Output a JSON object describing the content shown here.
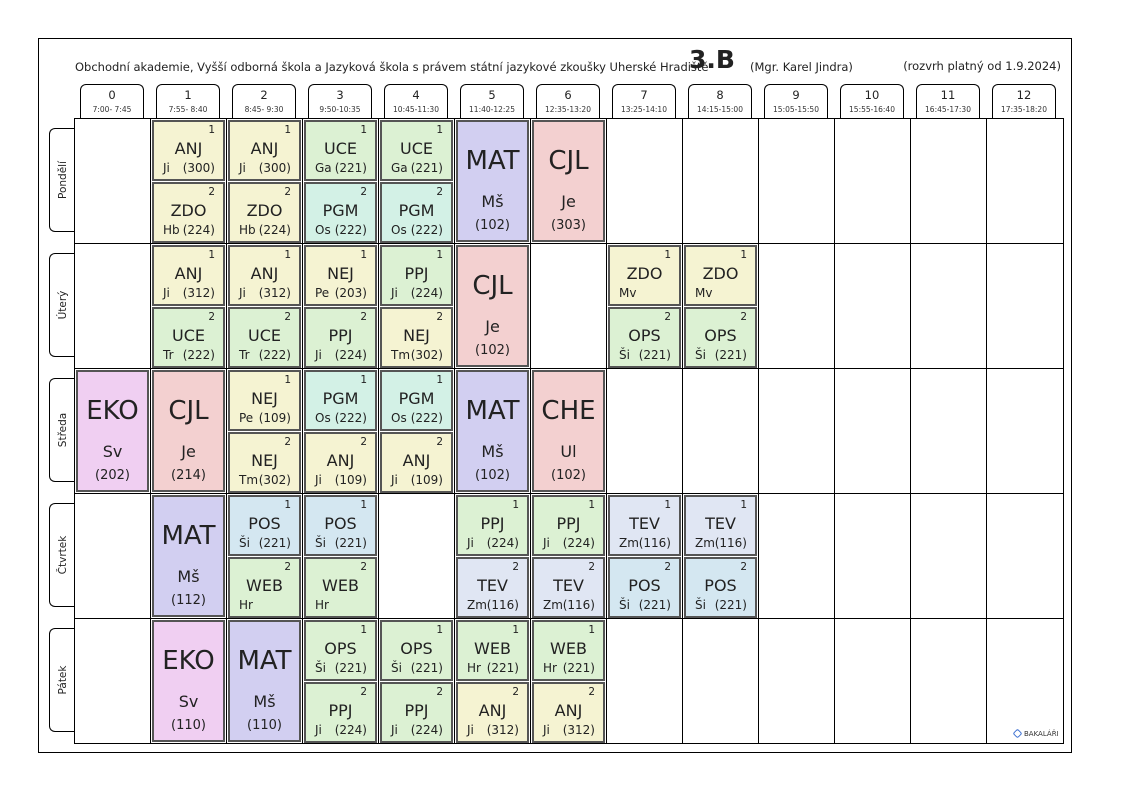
{
  "header": {
    "school": "Obchodní akademie, Vyšší odborná škola a Jazyková škola s právem státní jazykové zkoušky Uherské Hradiště",
    "class_name": "3.B",
    "class_teacher": "(Mgr. Karel Jindra)",
    "validity": "(rozvrh platný od 1.9.2024)"
  },
  "colors": {
    "ANJ": "#f5f3d2",
    "ZDO": "#f5f3d2",
    "UCE": "#dcf1d3",
    "PGM": "#d3f1e6",
    "MAT": "#d2cff1",
    "CJL": "#f3d0d0",
    "NEJ": "#f5f3d2",
    "PPJ": "#dcf1d3",
    "EKO": "#f0cff2",
    "CHE": "#f3d0d0",
    "POS": "#d4e7f1",
    "WEB": "#dcf1d3",
    "TEV": "#e0e6f3",
    "OPS": "#dcf1d3"
  },
  "periods": [
    {
      "num": "0",
      "time": "7:00- 7:45"
    },
    {
      "num": "1",
      "time": "7:55- 8:40"
    },
    {
      "num": "2",
      "time": "8:45- 9:30"
    },
    {
      "num": "3",
      "time": "9:50-10:35"
    },
    {
      "num": "4",
      "time": "10:45-11:30"
    },
    {
      "num": "5",
      "time": "11:40-12:25"
    },
    {
      "num": "6",
      "time": "12:35-13:20"
    },
    {
      "num": "7",
      "time": "13:25-14:10"
    },
    {
      "num": "8",
      "time": "14:15-15:00"
    },
    {
      "num": "9",
      "time": "15:05-15:50"
    },
    {
      "num": "10",
      "time": "15:55-16:40"
    },
    {
      "num": "11",
      "time": "16:45-17:30"
    },
    {
      "num": "12",
      "time": "17:35-18:20"
    }
  ],
  "days": [
    "Pondělí",
    "Úterý",
    "Středa",
    "Čtvrtek",
    "Pátek"
  ],
  "lessons": [
    {
      "day": 0,
      "period": 1,
      "groups": [
        {
          "g": "1",
          "subject": "ANJ",
          "teacher": "Ji",
          "room": "(300)"
        },
        {
          "g": "2",
          "subject": "ZDO",
          "teacher": "Hb",
          "room": "(224)"
        }
      ]
    },
    {
      "day": 0,
      "period": 2,
      "groups": [
        {
          "g": "1",
          "subject": "ANJ",
          "teacher": "Ji",
          "room": "(300)"
        },
        {
          "g": "2",
          "subject": "ZDO",
          "teacher": "Hb",
          "room": "(224)"
        }
      ]
    },
    {
      "day": 0,
      "period": 3,
      "groups": [
        {
          "g": "1",
          "subject": "UCE",
          "teacher": "Ga",
          "room": "(221)"
        },
        {
          "g": "2",
          "subject": "PGM",
          "teacher": "Os",
          "room": "(222)"
        }
      ]
    },
    {
      "day": 0,
      "period": 4,
      "groups": [
        {
          "g": "1",
          "subject": "UCE",
          "teacher": "Ga",
          "room": "(221)"
        },
        {
          "g": "2",
          "subject": "PGM",
          "teacher": "Os",
          "room": "(222)"
        }
      ]
    },
    {
      "day": 0,
      "period": 5,
      "full": {
        "subject": "MAT",
        "teacher": "Mš",
        "room": "(102)"
      }
    },
    {
      "day": 0,
      "period": 6,
      "full": {
        "subject": "CJL",
        "teacher": "Je",
        "room": "(303)"
      }
    },
    {
      "day": 1,
      "period": 1,
      "groups": [
        {
          "g": "1",
          "subject": "ANJ",
          "teacher": "Ji",
          "room": "(312)"
        },
        {
          "g": "2",
          "subject": "UCE",
          "teacher": "Tr",
          "room": "(222)"
        }
      ]
    },
    {
      "day": 1,
      "period": 2,
      "groups": [
        {
          "g": "1",
          "subject": "ANJ",
          "teacher": "Ji",
          "room": "(312)"
        },
        {
          "g": "2",
          "subject": "UCE",
          "teacher": "Tr",
          "room": "(222)"
        }
      ]
    },
    {
      "day": 1,
      "period": 3,
      "groups": [
        {
          "g": "1",
          "subject": "NEJ",
          "teacher": "Pe",
          "room": "(203)"
        },
        {
          "g": "2",
          "subject": "PPJ",
          "teacher": "Ji",
          "room": "(224)"
        }
      ]
    },
    {
      "day": 1,
      "period": 4,
      "groups": [
        {
          "g": "1",
          "subject": "PPJ",
          "teacher": "Ji",
          "room": "(224)"
        },
        {
          "g": "2",
          "subject": "NEJ",
          "teacher": "Tm",
          "room": "(302)"
        }
      ]
    },
    {
      "day": 1,
      "period": 5,
      "full": {
        "subject": "CJL",
        "teacher": "Je",
        "room": "(102)"
      }
    },
    {
      "day": 1,
      "period": 7,
      "groups": [
        {
          "g": "1",
          "subject": "ZDO",
          "teacher": "Mv",
          "room": ""
        },
        {
          "g": "2",
          "subject": "OPS",
          "teacher": "Ši",
          "room": "(221)"
        }
      ]
    },
    {
      "day": 1,
      "period": 8,
      "groups": [
        {
          "g": "1",
          "subject": "ZDO",
          "teacher": "Mv",
          "room": ""
        },
        {
          "g": "2",
          "subject": "OPS",
          "teacher": "Ši",
          "room": "(221)"
        }
      ]
    },
    {
      "day": 2,
      "period": 0,
      "full": {
        "subject": "EKO",
        "teacher": "Sv",
        "room": "(202)"
      }
    },
    {
      "day": 2,
      "period": 1,
      "full": {
        "subject": "CJL",
        "teacher": "Je",
        "room": "(214)"
      }
    },
    {
      "day": 2,
      "period": 2,
      "groups": [
        {
          "g": "1",
          "subject": "NEJ",
          "teacher": "Pe",
          "room": "(109)"
        },
        {
          "g": "2",
          "subject": "NEJ",
          "teacher": "Tm",
          "room": "(302)"
        }
      ]
    },
    {
      "day": 2,
      "period": 3,
      "groups": [
        {
          "g": "1",
          "subject": "PGM",
          "teacher": "Os",
          "room": "(222)"
        },
        {
          "g": "2",
          "subject": "ANJ",
          "teacher": "Ji",
          "room": "(109)"
        }
      ]
    },
    {
      "day": 2,
      "period": 4,
      "groups": [
        {
          "g": "1",
          "subject": "PGM",
          "teacher": "Os",
          "room": "(222)"
        },
        {
          "g": "2",
          "subject": "ANJ",
          "teacher": "Ji",
          "room": "(109)"
        }
      ]
    },
    {
      "day": 2,
      "period": 5,
      "full": {
        "subject": "MAT",
        "teacher": "Mš",
        "room": "(102)"
      }
    },
    {
      "day": 2,
      "period": 6,
      "full": {
        "subject": "CHE",
        "teacher": "Ul",
        "room": "(102)"
      }
    },
    {
      "day": 3,
      "period": 1,
      "full": {
        "subject": "MAT",
        "teacher": "Mš",
        "room": "(112)"
      }
    },
    {
      "day": 3,
      "period": 2,
      "groups": [
        {
          "g": "1",
          "subject": "POS",
          "teacher": "Ši",
          "room": "(221)"
        },
        {
          "g": "2",
          "subject": "WEB",
          "teacher": "Hr",
          "room": ""
        }
      ]
    },
    {
      "day": 3,
      "period": 3,
      "groups": [
        {
          "g": "1",
          "subject": "POS",
          "teacher": "Ši",
          "room": "(221)"
        },
        {
          "g": "2",
          "subject": "WEB",
          "teacher": "Hr",
          "room": ""
        }
      ]
    },
    {
      "day": 3,
      "period": 5,
      "groups": [
        {
          "g": "1",
          "subject": "PPJ",
          "teacher": "Ji",
          "room": "(224)"
        },
        {
          "g": "2",
          "subject": "TEV",
          "teacher": "Zm",
          "room": "(116)"
        }
      ]
    },
    {
      "day": 3,
      "period": 6,
      "groups": [
        {
          "g": "1",
          "subject": "PPJ",
          "teacher": "Ji",
          "room": "(224)"
        },
        {
          "g": "2",
          "subject": "TEV",
          "teacher": "Zm",
          "room": "(116)"
        }
      ]
    },
    {
      "day": 3,
      "period": 7,
      "groups": [
        {
          "g": "1",
          "subject": "TEV",
          "teacher": "Zm",
          "room": "(116)"
        },
        {
          "g": "2",
          "subject": "POS",
          "teacher": "Ši",
          "room": "(221)"
        }
      ]
    },
    {
      "day": 3,
      "period": 8,
      "groups": [
        {
          "g": "1",
          "subject": "TEV",
          "teacher": "Zm",
          "room": "(116)"
        },
        {
          "g": "2",
          "subject": "POS",
          "teacher": "Ši",
          "room": "(221)"
        }
      ]
    },
    {
      "day": 4,
      "period": 1,
      "full": {
        "subject": "EKO",
        "teacher": "Sv",
        "room": "(110)"
      }
    },
    {
      "day": 4,
      "period": 2,
      "full": {
        "subject": "MAT",
        "teacher": "Mš",
        "room": "(110)"
      }
    },
    {
      "day": 4,
      "period": 3,
      "groups": [
        {
          "g": "1",
          "subject": "OPS",
          "teacher": "Ši",
          "room": "(221)"
        },
        {
          "g": "2",
          "subject": "PPJ",
          "teacher": "Ji",
          "room": "(224)"
        }
      ]
    },
    {
      "day": 4,
      "period": 4,
      "groups": [
        {
          "g": "1",
          "subject": "OPS",
          "teacher": "Ši",
          "room": "(221)"
        },
        {
          "g": "2",
          "subject": "PPJ",
          "teacher": "Ji",
          "room": "(224)"
        }
      ]
    },
    {
      "day": 4,
      "period": 5,
      "groups": [
        {
          "g": "1",
          "subject": "WEB",
          "teacher": "Hr",
          "room": "(221)"
        },
        {
          "g": "2",
          "subject": "ANJ",
          "teacher": "Ji",
          "room": "(312)"
        }
      ]
    },
    {
      "day": 4,
      "period": 6,
      "groups": [
        {
          "g": "1",
          "subject": "WEB",
          "teacher": "Hr",
          "room": "(221)"
        },
        {
          "g": "2",
          "subject": "ANJ",
          "teacher": "Ji",
          "room": "(312)"
        }
      ]
    }
  ],
  "logo": {
    "text": "BAKALÁŘI",
    "icon": "bakalari-logo-icon"
  }
}
